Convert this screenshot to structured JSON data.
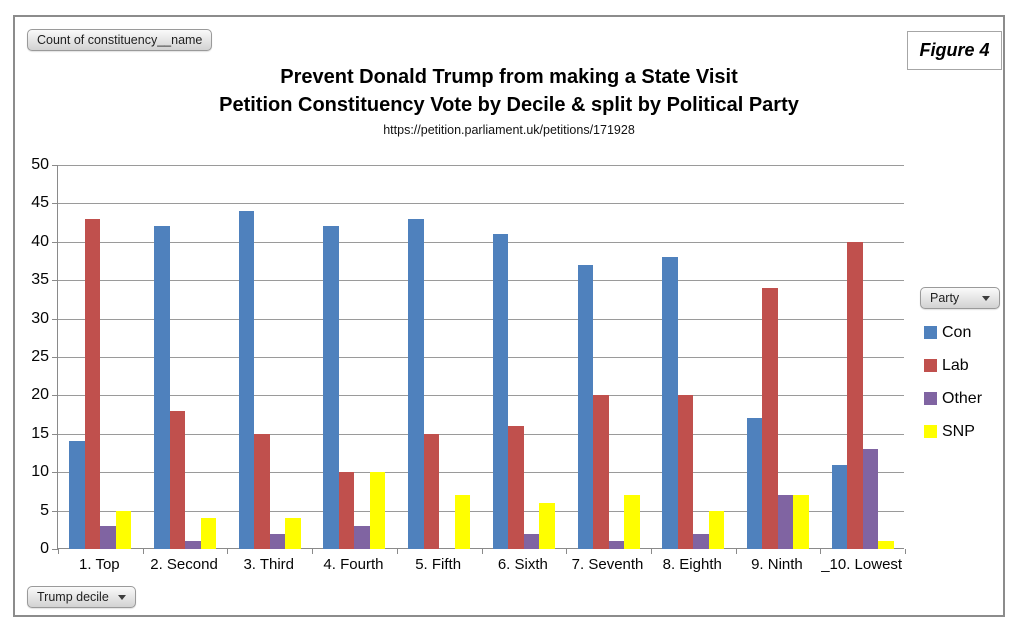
{
  "figure_box": {
    "label": "Figure 4"
  },
  "pivot_buttons": {
    "value_field": "Count of constituency__name",
    "axis_field": "Trump decile",
    "legend_field": "Party"
  },
  "chart_data": {
    "type": "bar",
    "title": "Prevent Donald Trump from making a State Visit",
    "subtitle": "Petition Constituency Vote by Decile & split by Political Party",
    "caption_url": "https://petition.parliament.uk/petitions/171928",
    "categories": [
      "1. Top",
      "2. Second",
      "3. Third",
      "4. Fourth",
      "5. Fifth",
      "6. Sixth",
      "7. Seventh",
      "8. Eighth",
      "9. Ninth",
      "_10. Lowest"
    ],
    "series": [
      {
        "name": "Con",
        "color": "#4F81BD",
        "values": [
          14,
          42,
          44,
          42,
          43,
          41,
          37,
          38,
          17,
          11
        ]
      },
      {
        "name": "Lab",
        "color": "#C0504D",
        "values": [
          43,
          18,
          15,
          10,
          15,
          16,
          20,
          20,
          34,
          40
        ]
      },
      {
        "name": "Other",
        "color": "#8064A2",
        "values": [
          3,
          1,
          2,
          3,
          0,
          2,
          1,
          2,
          7,
          13
        ]
      },
      {
        "name": "SNP",
        "color": "#FFFF00",
        "values": [
          5,
          4,
          4,
          10,
          7,
          6,
          7,
          5,
          7,
          1
        ]
      }
    ],
    "xlabel": "",
    "ylabel": "",
    "ylim": [
      0,
      50
    ],
    "ytick_step": 5,
    "grid": true,
    "legend_position": "right",
    "colors": {
      "gridline": "#9a9a9a",
      "axis": "#8a8a8a",
      "border": "#8c8c8c"
    }
  }
}
